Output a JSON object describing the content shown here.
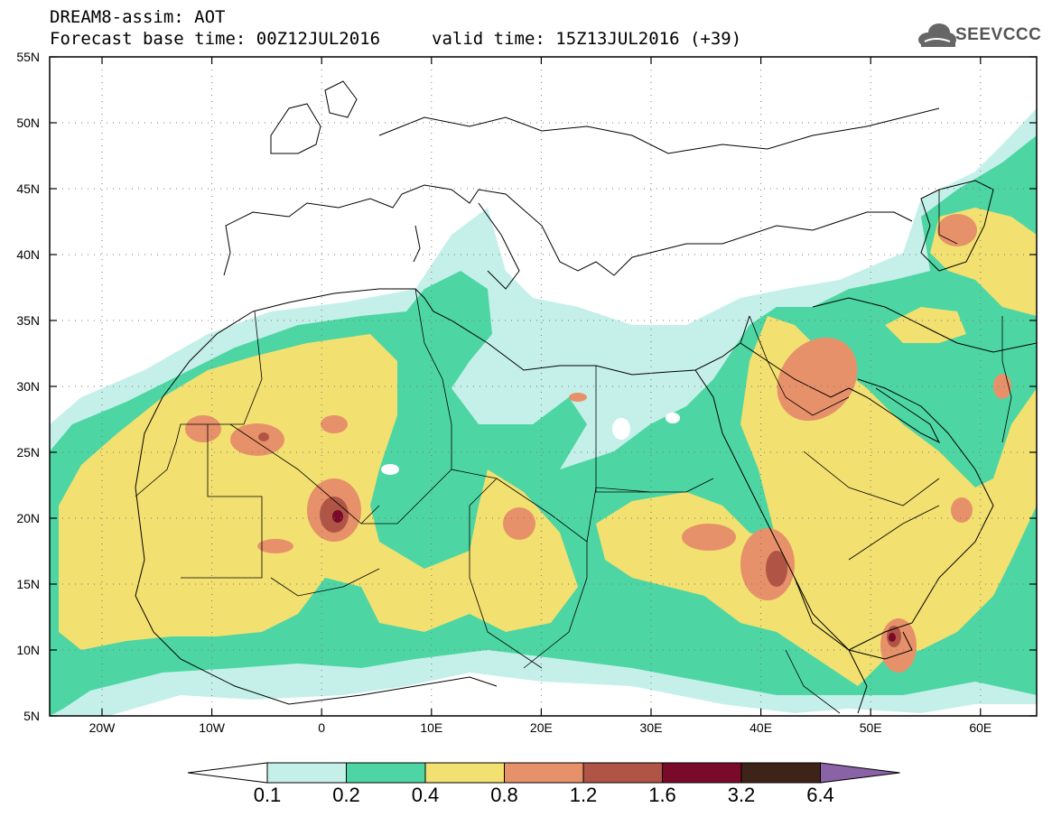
{
  "header": {
    "title": "DREAM8-assim: AOT",
    "base_time": "Forecast base time: 00Z12JUL2016",
    "valid_time": "valid time: 15Z13JUL2016 (+39)",
    "logo_text": "SEEVCCC"
  },
  "axes": {
    "lat_labels": [
      "55N",
      "50N",
      "45N",
      "40N",
      "35N",
      "30N",
      "25N",
      "20N",
      "15N",
      "10N",
      "5N"
    ],
    "lon_labels": [
      "20W",
      "10W",
      "0",
      "10E",
      "20E",
      "30E",
      "40E",
      "50E",
      "60E"
    ]
  },
  "colorbar": {
    "labels": [
      "0.1",
      "0.2",
      "0.4",
      "0.8",
      "1.2",
      "1.6",
      "3.2",
      "6.4"
    ],
    "colors": [
      "#c5f0ea",
      "#4dd6a3",
      "#f2e070",
      "#e7916a",
      "#b05545",
      "#7a0a2a",
      "#3e2418",
      "#8a62a6"
    ]
  },
  "colors": {
    "level1": "#c5f0ea",
    "level2": "#4dd6a3",
    "level3": "#f2e070",
    "level4": "#e7916a",
    "level5": "#b05545",
    "level6": "#7a0a2a",
    "level7": "#3e2418"
  }
}
